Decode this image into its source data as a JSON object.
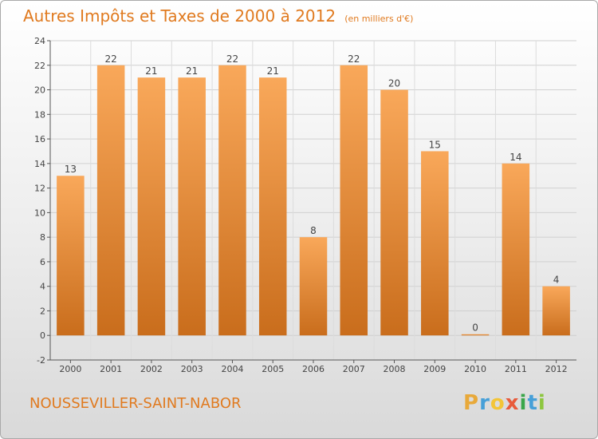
{
  "title": "Autres Impôts et Taxes de 2000 à 2012",
  "subtitle": "(en milliers d'€)",
  "location": "NOUSSEVILLER-SAINT-NABOR",
  "logo": {
    "letters": [
      "P",
      "r",
      "o",
      "x",
      "i",
      "t",
      "i"
    ],
    "colors": [
      "#e8a93a",
      "#47a0d8",
      "#f3c537",
      "#e85b3c",
      "#3aa64a",
      "#47a0d8",
      "#8dc63f"
    ]
  },
  "colors": {
    "bar_top": "#f9a85a",
    "bar_bottom": "#c96d1c",
    "title": "#e07a1f"
  },
  "chart_data": {
    "type": "bar",
    "categories": [
      "2000",
      "2001",
      "2002",
      "2003",
      "2004",
      "2005",
      "2006",
      "2007",
      "2008",
      "2009",
      "2010",
      "2011",
      "2012"
    ],
    "values": [
      13,
      22,
      21,
      21,
      22,
      21,
      8,
      22,
      20,
      15,
      0,
      14,
      4
    ],
    "data_labels": [
      "13",
      "22",
      "21",
      "21",
      "22",
      "21",
      "8",
      "22",
      "20",
      "15",
      "0",
      "14",
      "4"
    ],
    "yticks": [
      -2,
      0,
      2,
      4,
      6,
      8,
      10,
      12,
      14,
      16,
      18,
      20,
      22,
      24
    ],
    "ylim": [
      -2,
      24
    ],
    "grid": true,
    "title": "Autres Impôts et Taxes de 2000 à 2012",
    "subtitle": "(en milliers d'€)",
    "xlabel": "",
    "ylabel": ""
  }
}
